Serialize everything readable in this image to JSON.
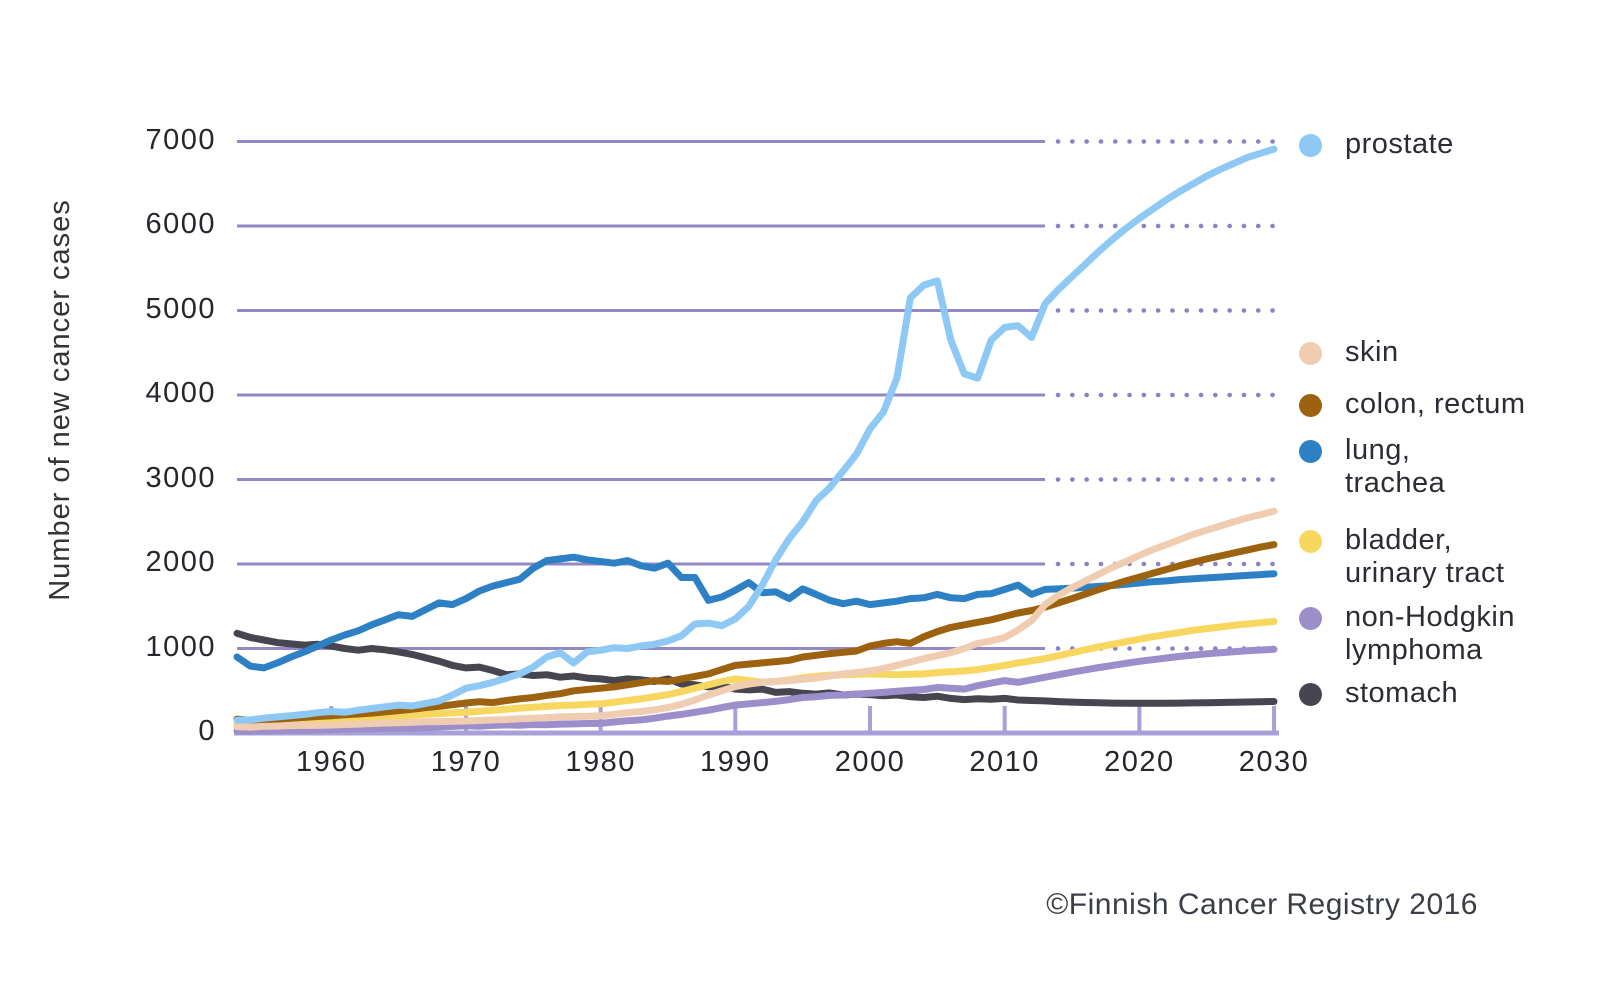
{
  "footer": {
    "credit": "©Finnish Cancer Registry 2016"
  },
  "chart_data": {
    "type": "line",
    "title": "",
    "xlabel": "",
    "ylabel": "Number of new cancer cases",
    "y_ticks": [
      0,
      1000,
      2000,
      3000,
      4000,
      5000,
      6000,
      7000
    ],
    "x_ticks": [
      1960,
      1970,
      1980,
      1990,
      2000,
      2010,
      2020,
      2030
    ],
    "ylim": [
      0,
      7000
    ],
    "xlim": [
      1953,
      2030
    ],
    "grid": "horizontal",
    "legend_position": "right",
    "solid_gridlines_until": 2013,
    "dotted_gridlines_after": 2013,
    "grid_color": "#9288c4",
    "grid_dot_color": "#8d80c6",
    "axis_color": "#a8a0d8",
    "years": [
      1953,
      1954,
      1955,
      1956,
      1957,
      1958,
      1959,
      1960,
      1961,
      1962,
      1963,
      1964,
      1965,
      1966,
      1967,
      1968,
      1969,
      1970,
      1971,
      1972,
      1973,
      1974,
      1975,
      1976,
      1977,
      1978,
      1979,
      1980,
      1981,
      1982,
      1983,
      1984,
      1985,
      1986,
      1987,
      1988,
      1989,
      1990,
      1991,
      1992,
      1993,
      1994,
      1995,
      1996,
      1997,
      1998,
      1999,
      2000,
      2001,
      2002,
      2003,
      2004,
      2005,
      2006,
      2007,
      2008,
      2009,
      2010,
      2011,
      2012,
      2013,
      2014,
      2015,
      2016,
      2017,
      2018,
      2019,
      2020,
      2021,
      2022,
      2023,
      2024,
      2025,
      2026,
      2027,
      2028,
      2029,
      2030
    ],
    "series": [
      {
        "name": "prostate",
        "legend_label": "prostate",
        "color": "#8ec8f4",
        "values": [
          150,
          155,
          175,
          190,
          205,
          220,
          240,
          255,
          245,
          270,
          290,
          310,
          330,
          320,
          350,
          380,
          450,
          530,
          560,
          600,
          650,
          700,
          780,
          900,
          950,
          830,
          960,
          980,
          1010,
          1000,
          1030,
          1050,
          1090,
          1150,
          1290,
          1300,
          1270,
          1350,
          1500,
          1750,
          2050,
          2300,
          2500,
          2750,
          2900,
          3100,
          3300,
          3600,
          3800,
          4200,
          5150,
          5300,
          5350,
          4650,
          4250,
          4200,
          4650,
          4800,
          4820,
          4680,
          5080,
          5250,
          5400,
          5550,
          5700,
          5840,
          5970,
          6090,
          6200,
          6310,
          6410,
          6500,
          6590,
          6670,
          6740,
          6810,
          6860,
          6910
        ]
      },
      {
        "name": "skin",
        "legend_label": "skin",
        "color": "#f0cdb1",
        "values": [
          75,
          70,
          78,
          82,
          88,
          92,
          90,
          95,
          100,
          105,
          112,
          118,
          122,
          128,
          132,
          135,
          138,
          142,
          148,
          155,
          160,
          168,
          175,
          182,
          190,
          195,
          198,
          205,
          220,
          240,
          255,
          275,
          300,
          340,
          390,
          450,
          500,
          550,
          580,
          600,
          610,
          620,
          635,
          650,
          675,
          700,
          715,
          735,
          765,
          800,
          840,
          880,
          915,
          950,
          1000,
          1060,
          1090,
          1130,
          1220,
          1330,
          1520,
          1630,
          1720,
          1800,
          1880,
          1960,
          2030,
          2100,
          2170,
          2230,
          2290,
          2350,
          2400,
          2450,
          2500,
          2545,
          2585,
          2625
        ]
      },
      {
        "name": "colon, rectum",
        "legend_label": "colon, rectum",
        "color": "#9c6210",
        "values": [
          165,
          150,
          155,
          165,
          175,
          185,
          195,
          205,
          215,
          225,
          235,
          250,
          265,
          280,
          300,
          315,
          335,
          355,
          370,
          360,
          385,
          405,
          420,
          445,
          465,
          500,
          515,
          530,
          545,
          570,
          595,
          620,
          610,
          640,
          670,
          700,
          750,
          800,
          815,
          830,
          845,
          860,
          900,
          920,
          940,
          955,
          970,
          1030,
          1060,
          1080,
          1060,
          1140,
          1200,
          1250,
          1280,
          1310,
          1340,
          1380,
          1420,
          1450,
          1490,
          1540,
          1590,
          1645,
          1700,
          1750,
          1800,
          1845,
          1890,
          1935,
          1980,
          2020,
          2060,
          2095,
          2130,
          2165,
          2200,
          2230
        ]
      },
      {
        "name": "lung, trachea",
        "legend_label": "lung,\ntrachea",
        "color": "#2e80c4",
        "values": [
          900,
          790,
          770,
          830,
          900,
          960,
          1030,
          1100,
          1160,
          1210,
          1280,
          1340,
          1400,
          1380,
          1460,
          1540,
          1520,
          1590,
          1680,
          1740,
          1780,
          1820,
          1950,
          2040,
          2060,
          2080,
          2050,
          2030,
          2010,
          2040,
          1980,
          1950,
          2010,
          1840,
          1840,
          1570,
          1610,
          1690,
          1780,
          1660,
          1670,
          1590,
          1705,
          1640,
          1570,
          1530,
          1560,
          1520,
          1540,
          1560,
          1590,
          1600,
          1640,
          1600,
          1590,
          1640,
          1650,
          1700,
          1750,
          1640,
          1700,
          1705,
          1715,
          1725,
          1735,
          1745,
          1760,
          1775,
          1790,
          1800,
          1815,
          1825,
          1835,
          1845,
          1855,
          1865,
          1875,
          1885
        ]
      },
      {
        "name": "bladder, urinary tract",
        "legend_label": "bladder,\nurinary tract",
        "color": "#f8d760",
        "values": [
          100,
          95,
          105,
          110,
          118,
          125,
          130,
          138,
          150,
          160,
          172,
          185,
          195,
          210,
          222,
          230,
          238,
          245,
          258,
          270,
          282,
          295,
          305,
          315,
          325,
          330,
          338,
          345,
          365,
          385,
          405,
          430,
          455,
          490,
          530,
          570,
          610,
          640,
          620,
          600,
          610,
          630,
          655,
          670,
          685,
          690,
          695,
          700,
          695,
          690,
          695,
          700,
          715,
          725,
          735,
          750,
          775,
          800,
          830,
          855,
          880,
          915,
          950,
          985,
          1020,
          1050,
          1080,
          1110,
          1140,
          1165,
          1190,
          1215,
          1235,
          1255,
          1275,
          1290,
          1305,
          1320
        ]
      },
      {
        "name": "non-Hodgkin lymphoma",
        "legend_label": "non-Hodgkin\nlymphoma",
        "color": "#9b8ecb",
        "values": [
          25,
          22,
          28,
          30,
          35,
          32,
          38,
          42,
          45,
          50,
          48,
          55,
          60,
          58,
          65,
          72,
          78,
          85,
          80,
          90,
          95,
          92,
          100,
          98,
          105,
          108,
          112,
          115,
          130,
          145,
          155,
          175,
          200,
          220,
          245,
          270,
          300,
          330,
          345,
          360,
          375,
          395,
          420,
          430,
          445,
          450,
          460,
          470,
          480,
          495,
          505,
          515,
          540,
          530,
          520,
          560,
          590,
          620,
          600,
          630,
          660,
          690,
          720,
          748,
          775,
          800,
          825,
          848,
          868,
          888,
          906,
          922,
          937,
          950,
          962,
          973,
          982,
          990
        ]
      },
      {
        "name": "stomach",
        "legend_label": "stomach",
        "color": "#474650",
        "values": [
          1180,
          1130,
          1100,
          1070,
          1055,
          1040,
          1050,
          1030,
          1000,
          980,
          1000,
          985,
          960,
          930,
          890,
          850,
          800,
          770,
          780,
          740,
          690,
          700,
          680,
          690,
          660,
          675,
          650,
          640,
          620,
          640,
          630,
          610,
          640,
          580,
          570,
          545,
          560,
          520,
          510,
          520,
          480,
          490,
          470,
          460,
          475,
          450,
          460,
          455,
          440,
          450,
          430,
          420,
          435,
          410,
          395,
          405,
          400,
          410,
          390,
          385,
          380,
          372,
          366,
          361,
          357,
          354,
          352,
          351,
          351,
          352,
          354,
          356,
          358,
          361,
          364,
          367,
          370,
          373
        ]
      }
    ]
  }
}
